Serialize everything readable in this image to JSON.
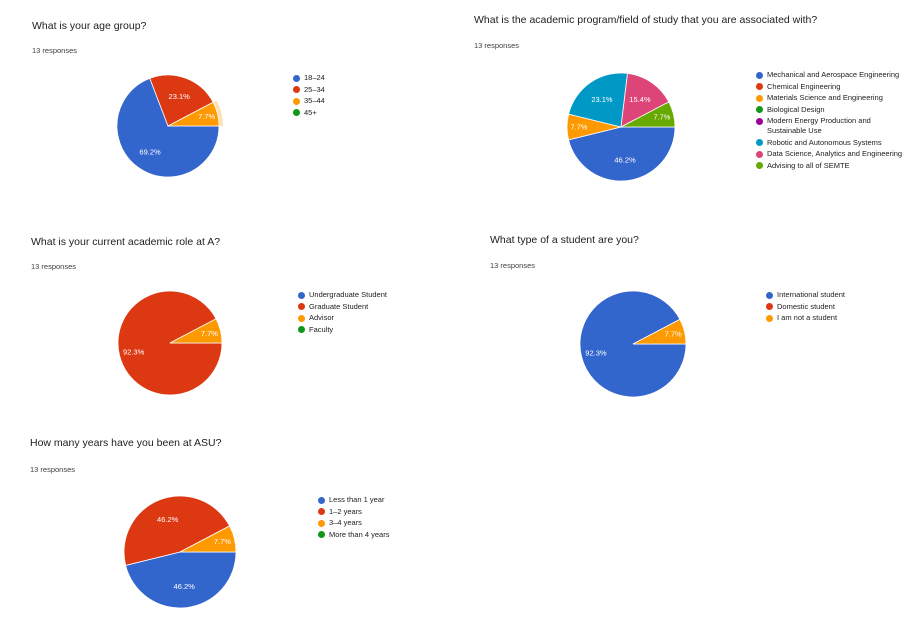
{
  "colors": {
    "blue": "#3366cc",
    "red": "#dc3912",
    "orange": "#ff9900",
    "green": "#109618",
    "purple": "#990099",
    "cyan": "#0099c6",
    "pink": "#dd4477",
    "lime": "#66aa00"
  },
  "chart_data": [
    {
      "type": "pie",
      "title": "What is your age group?",
      "responses": "13 responses",
      "legend_position": "right",
      "categories": [
        "18–24",
        "25–34",
        "35–44",
        "45+"
      ],
      "values": [
        69.2,
        23.1,
        7.7,
        0
      ],
      "labels": [
        "69.2%",
        "23.1%",
        "7.7%",
        ""
      ],
      "colors": [
        "#3366cc",
        "#dc3912",
        "#ff9900",
        "#109618"
      ],
      "highlighted": "35–44"
    },
    {
      "type": "pie",
      "title": "What is the academic program/field of study that you are associated with?",
      "responses": "13 responses",
      "legend_position": "right",
      "categories": [
        "Mechanical and Aerospace Engineering",
        "Chemical Engineering",
        "Materials Science and Engineering",
        "Biological Design",
        "Modern Energy Production and Sustainable Use",
        "Robotic and Autonomous Systems",
        "Data Science, Analytics and Engineering",
        "Advising to all of SEMTE"
      ],
      "values": [
        46.2,
        0,
        7.7,
        0,
        0,
        23.1,
        15.4,
        7.7
      ],
      "labels": [
        "46.2%",
        "",
        "7.7%",
        "",
        "",
        "23.1%",
        "15.4%",
        "7.7%"
      ],
      "colors": [
        "#3366cc",
        "#dc3912",
        "#ff9900",
        "#109618",
        "#990099",
        "#0099c6",
        "#dd4477",
        "#66aa00"
      ]
    },
    {
      "type": "pie",
      "title": "What is your current academic role at A?",
      "responses": "13 responses",
      "legend_position": "right",
      "categories": [
        "Undergraduate Student",
        "Graduate Student",
        "Advisor",
        "Faculty"
      ],
      "values": [
        0,
        92.3,
        7.7,
        0
      ],
      "labels": [
        "",
        "92.3%",
        "7.7%",
        ""
      ],
      "colors": [
        "#3366cc",
        "#dc3912",
        "#ff9900",
        "#109618"
      ]
    },
    {
      "type": "pie",
      "title": "What type of a student are you?",
      "responses": "13 responses",
      "legend_position": "right",
      "categories": [
        "International student",
        "Domestic student",
        "I am not a student"
      ],
      "values": [
        92.3,
        0,
        7.7
      ],
      "labels": [
        "92.3%",
        "",
        "7.7%"
      ],
      "colors": [
        "#3366cc",
        "#dc3912",
        "#ff9900"
      ]
    },
    {
      "type": "pie",
      "title": "How many years have you been at ASU?",
      "responses": "13 responses",
      "legend_position": "right",
      "categories": [
        "Less than 1 year",
        "1–2 years",
        "3–4 years",
        "More than 4 years"
      ],
      "values": [
        46.2,
        46.2,
        7.7,
        0
      ],
      "labels": [
        "46.2%",
        "46.2%",
        "7.7%",
        ""
      ],
      "colors": [
        "#3366cc",
        "#dc3912",
        "#ff9900",
        "#109618"
      ]
    }
  ]
}
